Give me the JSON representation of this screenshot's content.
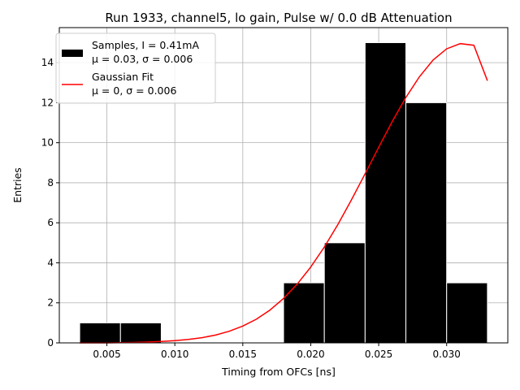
{
  "chart_data": {
    "type": "bar",
    "title": "Run 1933, channel5, lo gain, Pulse w/ 0.0 dB Attenuation",
    "xlabel": "Timing from OFCs [ns]",
    "ylabel": "Entries",
    "xlim": [
      0.0015,
      0.0345
    ],
    "ylim": [
      0,
      15.75
    ],
    "xticks": [
      0.005,
      0.01,
      0.015,
      0.02,
      0.025,
      0.03
    ],
    "xtick_labels": [
      "0.005",
      "0.010",
      "0.015",
      "0.020",
      "0.025",
      "0.030"
    ],
    "yticks": [
      0,
      2,
      4,
      6,
      8,
      10,
      12,
      14
    ],
    "ytick_labels": [
      "0",
      "2",
      "4",
      "6",
      "8",
      "10",
      "12",
      "14"
    ],
    "grid": true,
    "legend_position": "top-left",
    "bins": [
      {
        "x0": 0.003,
        "x1": 0.006,
        "count": 1
      },
      {
        "x0": 0.006,
        "x1": 0.009,
        "count": 1
      },
      {
        "x0": 0.018,
        "x1": 0.021,
        "count": 3
      },
      {
        "x0": 0.021,
        "x1": 0.024,
        "count": 5
      },
      {
        "x0": 0.024,
        "x1": 0.027,
        "count": 15
      },
      {
        "x0": 0.027,
        "x1": 0.03,
        "count": 12
      },
      {
        "x0": 0.03,
        "x1": 0.033,
        "count": 3
      }
    ],
    "fit": {
      "x": [
        0.003,
        0.004,
        0.005,
        0.006,
        0.007,
        0.008,
        0.009,
        0.01,
        0.011,
        0.012,
        0.013,
        0.014,
        0.015,
        0.016,
        0.017,
        0.018,
        0.019,
        0.02,
        0.021,
        0.022,
        0.023,
        0.024,
        0.025,
        0.026,
        0.027,
        0.028,
        0.029,
        0.03,
        0.031,
        0.032,
        0.033
      ],
      "y": [
        0.0,
        0.0,
        0.0,
        0.01,
        0.02,
        0.04,
        0.07,
        0.11,
        0.17,
        0.26,
        0.39,
        0.58,
        0.84,
        1.18,
        1.64,
        2.22,
        2.93,
        3.79,
        4.79,
        5.92,
        7.15,
        8.45,
        9.77,
        11.06,
        12.26,
        13.3,
        14.13,
        14.69,
        14.95,
        14.87,
        13.1
      ]
    },
    "series": [
      {
        "name": "Samples, I = 0.41mA",
        "name_line2": "μ = 0.03, σ = 0.006",
        "color": "#000000"
      },
      {
        "name": "Gaussian Fit",
        "name_line2": "μ = 0, σ = 0.006",
        "color": "#ff0000"
      }
    ]
  }
}
